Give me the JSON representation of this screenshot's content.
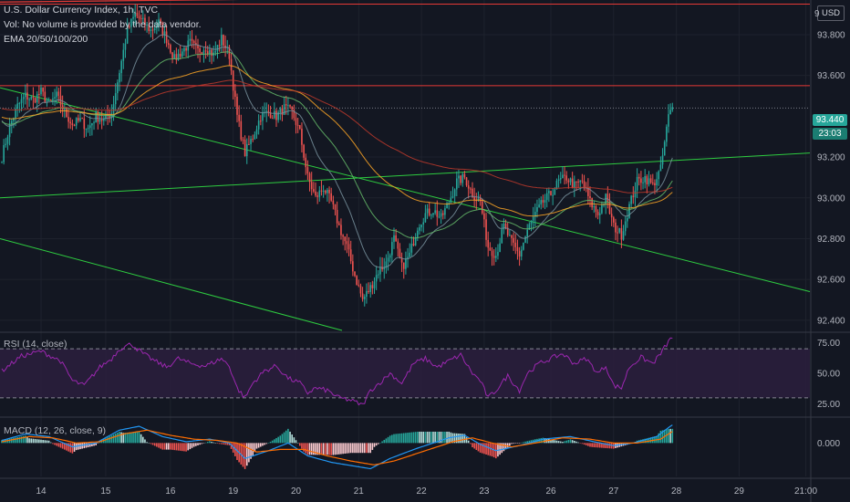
{
  "legend": {
    "symbol": "U.S. Dollar Currency Index, 1h, TVC",
    "vol": "Vol: No volume is provided by the data vendor.",
    "ema": "EMA 20/50/100/200"
  },
  "rsi_title": "RSI (14, close)",
  "macd_title": "MACD (12, 26, close, 9)",
  "currency": "USD",
  "last_price": "93.440",
  "countdown": "23:03",
  "top_axis_fragment": "9",
  "colors": {
    "up": "#26a69a",
    "down": "#ef5350",
    "ema20": "#78909c",
    "ema50": "#66bb6a",
    "ema100": "#ffa726",
    "ema200": "#c0392b",
    "rsi": "#9c27b0",
    "macd": "#2196f3",
    "signal": "#ff6d00",
    "trend_green": "#2ecc40",
    "trend_red": "#e53935"
  },
  "chart_data": [
    {
      "type": "candlestick",
      "title": "U.S. Dollar Currency Index, 1h, TVC",
      "x_ticks": [
        "14",
        "15",
        "16",
        "19",
        "20",
        "21",
        "22",
        "23",
        "26",
        "27",
        "28",
        "29",
        "21:00"
      ],
      "y_ticks": [
        "93.800",
        "93.600",
        "93.440",
        "93.200",
        "93.000",
        "92.800",
        "92.600",
        "92.400"
      ],
      "ylim": [
        92.35,
        93.97
      ],
      "price_path": [
        [
          0,
          93.2
        ],
        [
          4,
          93.35
        ],
        [
          8,
          93.45
        ],
        [
          12,
          93.5
        ],
        [
          16,
          93.48
        ],
        [
          20,
          93.52
        ],
        [
          24,
          93.46
        ],
        [
          28,
          93.5
        ],
        [
          32,
          93.42
        ],
        [
          36,
          93.36
        ],
        [
          40,
          93.38
        ],
        [
          44,
          93.34
        ],
        [
          48,
          93.4
        ],
        [
          52,
          93.38
        ],
        [
          56,
          93.42
        ],
        [
          60,
          93.62
        ],
        [
          64,
          93.82
        ],
        [
          68,
          93.9
        ],
        [
          72,
          93.86
        ],
        [
          76,
          93.82
        ],
        [
          80,
          93.86
        ],
        [
          84,
          93.78
        ],
        [
          88,
          93.68
        ],
        [
          92,
          93.72
        ],
        [
          96,
          93.76
        ],
        [
          100,
          93.72
        ],
        [
          104,
          93.74
        ],
        [
          108,
          93.7
        ],
        [
          112,
          93.78
        ],
        [
          116,
          93.7
        ],
        [
          120,
          93.4
        ],
        [
          124,
          93.22
        ],
        [
          128,
          93.3
        ],
        [
          132,
          93.4
        ],
        [
          136,
          93.42
        ],
        [
          140,
          93.4
        ],
        [
          144,
          93.44
        ],
        [
          148,
          93.42
        ],
        [
          152,
          93.32
        ],
        [
          156,
          93.1
        ],
        [
          160,
          93.0
        ],
        [
          164,
          93.05
        ],
        [
          168,
          92.98
        ],
        [
          172,
          92.86
        ],
        [
          176,
          92.76
        ],
        [
          180,
          92.62
        ],
        [
          184,
          92.5
        ],
        [
          188,
          92.56
        ],
        [
          192,
          92.64
        ],
        [
          196,
          92.68
        ],
        [
          200,
          92.8
        ],
        [
          204,
          92.66
        ],
        [
          208,
          92.72
        ],
        [
          212,
          92.86
        ],
        [
          216,
          92.92
        ],
        [
          220,
          92.94
        ],
        [
          224,
          92.9
        ],
        [
          228,
          92.98
        ],
        [
          232,
          93.08
        ],
        [
          236,
          93.1
        ],
        [
          240,
          93.02
        ],
        [
          244,
          92.98
        ],
        [
          248,
          92.76
        ],
        [
          252,
          92.72
        ],
        [
          256,
          92.86
        ],
        [
          260,
          92.78
        ],
        [
          264,
          92.72
        ],
        [
          268,
          92.84
        ],
        [
          272,
          92.92
        ],
        [
          276,
          92.98
        ],
        [
          280,
          93.02
        ],
        [
          284,
          93.08
        ],
        [
          288,
          93.1
        ],
        [
          292,
          93.06
        ],
        [
          296,
          93.08
        ],
        [
          300,
          92.98
        ],
        [
          304,
          92.92
        ],
        [
          308,
          93.0
        ],
        [
          312,
          92.86
        ],
        [
          316,
          92.82
        ],
        [
          320,
          92.96
        ],
        [
          324,
          93.08
        ],
        [
          328,
          93.1
        ],
        [
          332,
          93.06
        ],
        [
          336,
          93.14
        ],
        [
          340,
          93.4
        ],
        [
          342,
          93.44
        ]
      ],
      "ema_series": [
        "EMA 20",
        "EMA 50",
        "EMA 100",
        "EMA 200"
      ],
      "horizontal_level": 93.55,
      "current_price": 93.44
    },
    {
      "type": "line",
      "title": "RSI (14, close)",
      "y_ticks": [
        "75.00",
        "50.00",
        "25.00"
      ],
      "ylim": [
        18,
        82
      ],
      "bands": [
        30,
        70
      ],
      "values_path": [
        [
          0,
          52
        ],
        [
          10,
          64
        ],
        [
          20,
          68
        ],
        [
          30,
          60
        ],
        [
          36,
          44
        ],
        [
          42,
          40
        ],
        [
          50,
          55
        ],
        [
          56,
          62
        ],
        [
          60,
          70
        ],
        [
          66,
          74
        ],
        [
          72,
          66
        ],
        [
          78,
          60
        ],
        [
          84,
          55
        ],
        [
          90,
          62
        ],
        [
          96,
          58
        ],
        [
          104,
          56
        ],
        [
          112,
          62
        ],
        [
          116,
          56
        ],
        [
          120,
          38
        ],
        [
          124,
          30
        ],
        [
          128,
          42
        ],
        [
          134,
          52
        ],
        [
          140,
          56
        ],
        [
          146,
          46
        ],
        [
          152,
          42
        ],
        [
          156,
          34
        ],
        [
          160,
          38
        ],
        [
          166,
          36
        ],
        [
          172,
          30
        ],
        [
          178,
          28
        ],
        [
          184,
          24
        ],
        [
          188,
          36
        ],
        [
          194,
          44
        ],
        [
          198,
          50
        ],
        [
          204,
          42
        ],
        [
          210,
          58
        ],
        [
          216,
          62
        ],
        [
          222,
          55
        ],
        [
          228,
          60
        ],
        [
          234,
          65
        ],
        [
          240,
          50
        ],
        [
          244,
          44
        ],
        [
          248,
          30
        ],
        [
          252,
          36
        ],
        [
          258,
          48
        ],
        [
          264,
          36
        ],
        [
          268,
          50
        ],
        [
          274,
          58
        ],
        [
          280,
          62
        ],
        [
          286,
          66
        ],
        [
          292,
          58
        ],
        [
          298,
          62
        ],
        [
          304,
          50
        ],
        [
          308,
          56
        ],
        [
          312,
          40
        ],
        [
          316,
          38
        ],
        [
          320,
          55
        ],
        [
          326,
          63
        ],
        [
          332,
          58
        ],
        [
          336,
          66
        ],
        [
          340,
          76
        ],
        [
          342,
          79
        ]
      ]
    },
    {
      "type": "bar",
      "title": "MACD (12, 26, close, 9)",
      "y_ticks": [
        "0.000"
      ],
      "ylim": [
        -0.26,
        0.18
      ],
      "macd_path": [
        [
          0,
          0.02
        ],
        [
          12,
          0.07
        ],
        [
          24,
          0.05
        ],
        [
          36,
          -0.03
        ],
        [
          48,
          0.0
        ],
        [
          60,
          0.1
        ],
        [
          70,
          0.13
        ],
        [
          82,
          0.05
        ],
        [
          94,
          0.01
        ],
        [
          106,
          0.03
        ],
        [
          116,
          0.0
        ],
        [
          124,
          -0.12
        ],
        [
          136,
          -0.06
        ],
        [
          146,
          0.0
        ],
        [
          156,
          -0.1
        ],
        [
          168,
          -0.15
        ],
        [
          180,
          -0.18
        ],
        [
          188,
          -0.2
        ],
        [
          198,
          -0.12
        ],
        [
          212,
          -0.04
        ],
        [
          228,
          0.04
        ],
        [
          236,
          0.06
        ],
        [
          244,
          -0.01
        ],
        [
          252,
          -0.06
        ],
        [
          264,
          -0.02
        ],
        [
          276,
          0.03
        ],
        [
          290,
          0.05
        ],
        [
          302,
          0.01
        ],
        [
          312,
          -0.02
        ],
        [
          322,
          0.0
        ],
        [
          334,
          0.05
        ],
        [
          340,
          0.12
        ],
        [
          342,
          0.14
        ]
      ],
      "signal_path": [
        [
          0,
          0.01
        ],
        [
          14,
          0.05
        ],
        [
          26,
          0.04
        ],
        [
          38,
          0.0
        ],
        [
          50,
          0.01
        ],
        [
          62,
          0.07
        ],
        [
          74,
          0.1
        ],
        [
          86,
          0.06
        ],
        [
          98,
          0.03
        ],
        [
          110,
          0.02
        ],
        [
          120,
          0.0
        ],
        [
          130,
          -0.07
        ],
        [
          142,
          -0.05
        ],
        [
          154,
          -0.05
        ],
        [
          166,
          -0.1
        ],
        [
          178,
          -0.14
        ],
        [
          190,
          -0.17
        ],
        [
          200,
          -0.14
        ],
        [
          214,
          -0.07
        ],
        [
          230,
          0.01
        ],
        [
          240,
          0.04
        ],
        [
          250,
          0.0
        ],
        [
          260,
          -0.03
        ],
        [
          272,
          0.0
        ],
        [
          286,
          0.04
        ],
        [
          300,
          0.03
        ],
        [
          312,
          0.0
        ],
        [
          324,
          0.0
        ],
        [
          336,
          0.03
        ],
        [
          342,
          0.09
        ]
      ]
    }
  ]
}
